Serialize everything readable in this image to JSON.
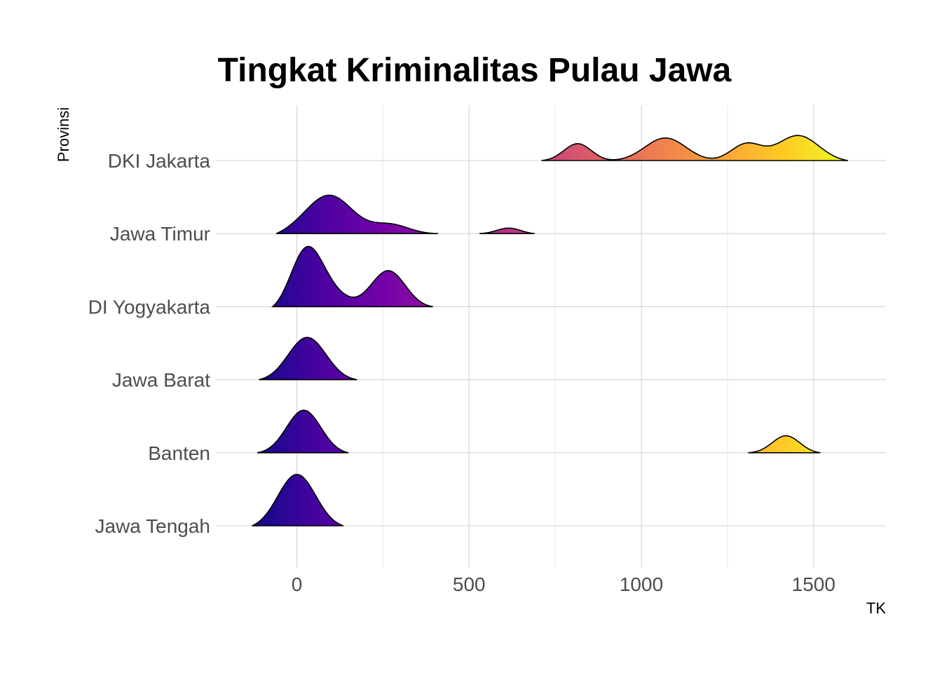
{
  "chart_data": {
    "type": "ridgeline",
    "title": "Tingkat Kriminalitas Pulau Jawa",
    "xlabel": "TK",
    "ylabel": "Provinsi",
    "xlim": [
      -235,
      1710
    ],
    "x_ticks": [
      0,
      500,
      1000,
      1500
    ],
    "x_minor_ticks": [
      -250,
      250,
      750,
      1250
    ],
    "categories": [
      "Jawa Tengah",
      "Banten",
      "Jawa Barat",
      "DI Yogyakarta",
      "Jawa Timur",
      "DKI Jakarta"
    ],
    "fill_colormap": "plasma",
    "fill_range": [
      -140,
      1600
    ],
    "grid": true,
    "legend": "none",
    "series": [
      {
        "name": "Jawa Tengah",
        "x_range": [
          -130,
          135
        ],
        "peaks": [
          [
            0,
            1.55,
            55
          ]
        ]
      },
      {
        "name": "Banten",
        "x_range": [
          -115,
          150
        ],
        "peaks": [
          [
            20,
            1.25,
            50
          ]
        ],
        "secondary_range": [
          1310,
          1520
        ],
        "secondary_peaks": [
          [
            1420,
            0.5,
            40
          ]
        ]
      },
      {
        "name": "Jawa Barat",
        "x_range": [
          -110,
          175
        ],
        "peaks": [
          [
            30,
            1.25,
            55
          ]
        ]
      },
      {
        "name": "DI Yogyakarta",
        "x_range": [
          -70,
          395
        ],
        "peaks": [
          [
            25,
            1.45,
            45
          ],
          [
            80,
            0.6,
            60
          ],
          [
            265,
            1.1,
            50
          ]
        ]
      },
      {
        "name": "Jawa Timur",
        "x_range": [
          -60,
          410
        ],
        "peaks": [
          [
            100,
            1.1,
            65
          ],
          [
            20,
            0.2,
            60
          ],
          [
            270,
            0.3,
            55
          ]
        ],
        "secondary_range": [
          530,
          690
        ],
        "secondary_peaks": [
          [
            615,
            0.17,
            35
          ]
        ]
      },
      {
        "name": "DKI Jakarta",
        "x_range": [
          710,
          1600
        ],
        "peaks": [
          [
            815,
            0.5,
            40
          ],
          [
            1070,
            0.67,
            60
          ],
          [
            1305,
            0.5,
            45
          ],
          [
            1455,
            0.75,
            60
          ]
        ]
      }
    ]
  }
}
